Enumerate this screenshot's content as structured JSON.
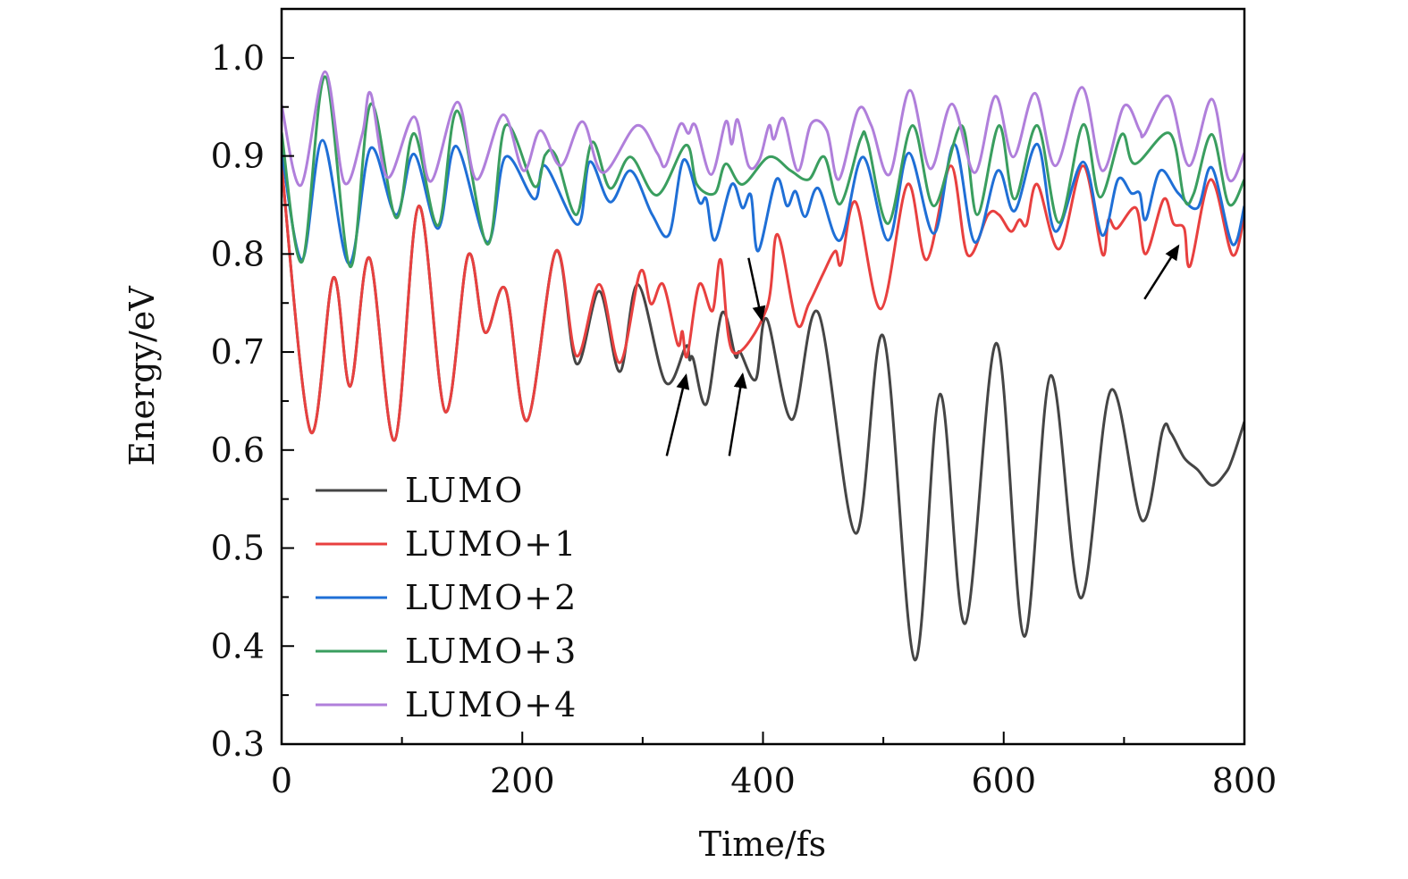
{
  "chart_data": {
    "type": "line",
    "title": "",
    "xlabel": "Time/fs",
    "ylabel": "Energy/eV",
    "xlim": [
      0,
      800
    ],
    "ylim": [
      0.3,
      1.05
    ],
    "xticks": [
      "0",
      "200",
      "400",
      "600",
      "800"
    ],
    "xtick_values": [
      0,
      200,
      400,
      600,
      800
    ],
    "yticks": [
      "0.3",
      "0.4",
      "0.5",
      "0.6",
      "0.7",
      "0.8",
      "0.9",
      "1.0"
    ],
    "ytick_values": [
      0.3,
      0.4,
      0.5,
      0.6,
      0.7,
      0.8,
      0.9,
      1.0
    ],
    "grid": false,
    "legend_position": "bottom-left",
    "series": [
      {
        "name": "LUMO",
        "color": "#454545",
        "points": [
          [
            0,
            0.89
          ],
          [
            24,
            0.619
          ],
          [
            43,
            0.776
          ],
          [
            57,
            0.665
          ],
          [
            73,
            0.796
          ],
          [
            94,
            0.61
          ],
          [
            114,
            0.849
          ],
          [
            136,
            0.639
          ],
          [
            155,
            0.799
          ],
          [
            169,
            0.72
          ],
          [
            186,
            0.764
          ],
          [
            204,
            0.63
          ],
          [
            228,
            0.803
          ],
          [
            245,
            0.688
          ],
          [
            264,
            0.762
          ],
          [
            281,
            0.68
          ],
          [
            296,
            0.769
          ],
          [
            319,
            0.669
          ],
          [
            336,
            0.706
          ],
          [
            339,
            0.692
          ],
          [
            342,
            0.693
          ],
          [
            353,
            0.647
          ],
          [
            366,
            0.74
          ],
          [
            377,
            0.696
          ],
          [
            381,
            0.7
          ],
          [
            394,
            0.672
          ],
          [
            403,
            0.734
          ],
          [
            424,
            0.631
          ],
          [
            446,
            0.74
          ],
          [
            477,
            0.515
          ],
          [
            500,
            0.716
          ],
          [
            526,
            0.386
          ],
          [
            547,
            0.657
          ],
          [
            568,
            0.423
          ],
          [
            594,
            0.709
          ],
          [
            617,
            0.41
          ],
          [
            639,
            0.676
          ],
          [
            664,
            0.449
          ],
          [
            689,
            0.661
          ],
          [
            715,
            0.528
          ],
          [
            732,
            0.62
          ],
          [
            739,
            0.617
          ],
          [
            750,
            0.592
          ],
          [
            761,
            0.58
          ],
          [
            773,
            0.564
          ],
          [
            784,
            0.576
          ],
          [
            790,
            0.591
          ],
          [
            800,
            0.629
          ]
        ]
      },
      {
        "name": "LUMO+1",
        "color": "#e8403f",
        "points": [
          [
            0,
            0.89
          ],
          [
            24,
            0.619
          ],
          [
            43,
            0.776
          ],
          [
            57,
            0.665
          ],
          [
            73,
            0.796
          ],
          [
            94,
            0.61
          ],
          [
            114,
            0.849
          ],
          [
            136,
            0.639
          ],
          [
            155,
            0.799
          ],
          [
            169,
            0.72
          ],
          [
            186,
            0.764
          ],
          [
            204,
            0.63
          ],
          [
            228,
            0.803
          ],
          [
            245,
            0.696
          ],
          [
            264,
            0.769
          ],
          [
            281,
            0.689
          ],
          [
            298,
            0.782
          ],
          [
            307,
            0.749
          ],
          [
            317,
            0.769
          ],
          [
            329,
            0.708
          ],
          [
            333,
            0.721
          ],
          [
            337,
            0.696
          ],
          [
            347,
            0.769
          ],
          [
            358,
            0.742
          ],
          [
            365,
            0.794
          ],
          [
            375,
            0.7
          ],
          [
            403,
            0.744
          ],
          [
            412,
            0.82
          ],
          [
            428,
            0.729
          ],
          [
            438,
            0.749
          ],
          [
            450,
            0.78
          ],
          [
            460,
            0.803
          ],
          [
            465,
            0.79
          ],
          [
            477,
            0.853
          ],
          [
            498,
            0.744
          ],
          [
            520,
            0.871
          ],
          [
            536,
            0.794
          ],
          [
            556,
            0.89
          ],
          [
            570,
            0.799
          ],
          [
            587,
            0.84
          ],
          [
            596,
            0.84
          ],
          [
            606,
            0.823
          ],
          [
            613,
            0.835
          ],
          [
            619,
            0.83
          ],
          [
            628,
            0.871
          ],
          [
            646,
            0.805
          ],
          [
            666,
            0.89
          ],
          [
            682,
            0.8
          ],
          [
            687,
            0.835
          ],
          [
            694,
            0.826
          ],
          [
            710,
            0.847
          ],
          [
            718,
            0.8
          ],
          [
            733,
            0.856
          ],
          [
            741,
            0.831
          ],
          [
            750,
            0.826
          ],
          [
            755,
            0.788
          ],
          [
            772,
            0.876
          ],
          [
            790,
            0.799
          ],
          [
            800,
            0.84
          ]
        ]
      },
      {
        "name": "LUMO+2",
        "color": "#1f6fd6",
        "points": [
          [
            0,
            0.905
          ],
          [
            17,
            0.794
          ],
          [
            34,
            0.916
          ],
          [
            56,
            0.79
          ],
          [
            74,
            0.908
          ],
          [
            95,
            0.84
          ],
          [
            110,
            0.902
          ],
          [
            130,
            0.826
          ],
          [
            145,
            0.91
          ],
          [
            171,
            0.812
          ],
          [
            186,
            0.899
          ],
          [
            210,
            0.856
          ],
          [
            219,
            0.89
          ],
          [
            246,
            0.83
          ],
          [
            256,
            0.894
          ],
          [
            273,
            0.853
          ],
          [
            290,
            0.885
          ],
          [
            308,
            0.84
          ],
          [
            322,
            0.82
          ],
          [
            334,
            0.896
          ],
          [
            347,
            0.853
          ],
          [
            353,
            0.856
          ],
          [
            360,
            0.814
          ],
          [
            374,
            0.871
          ],
          [
            383,
            0.847
          ],
          [
            390,
            0.86
          ],
          [
            396,
            0.803
          ],
          [
            411,
            0.876
          ],
          [
            420,
            0.849
          ],
          [
            427,
            0.864
          ],
          [
            435,
            0.838
          ],
          [
            446,
            0.867
          ],
          [
            464,
            0.814
          ],
          [
            483,
            0.899
          ],
          [
            504,
            0.814
          ],
          [
            521,
            0.903
          ],
          [
            542,
            0.821
          ],
          [
            559,
            0.912
          ],
          [
            576,
            0.812
          ],
          [
            595,
            0.885
          ],
          [
            609,
            0.844
          ],
          [
            628,
            0.912
          ],
          [
            643,
            0.823
          ],
          [
            666,
            0.894
          ],
          [
            682,
            0.819
          ],
          [
            695,
            0.876
          ],
          [
            706,
            0.862
          ],
          [
            713,
            0.862
          ],
          [
            718,
            0.835
          ],
          [
            730,
            0.885
          ],
          [
            745,
            0.862
          ],
          [
            761,
            0.847
          ],
          [
            773,
            0.888
          ],
          [
            790,
            0.81
          ],
          [
            800,
            0.849
          ]
        ]
      },
      {
        "name": "LUMO+3",
        "color": "#3a9e5f",
        "points": [
          [
            0,
            0.924
          ],
          [
            17,
            0.792
          ],
          [
            36,
            0.981
          ],
          [
            57,
            0.787
          ],
          [
            74,
            0.953
          ],
          [
            95,
            0.837
          ],
          [
            110,
            0.923
          ],
          [
            130,
            0.829
          ],
          [
            146,
            0.946
          ],
          [
            171,
            0.81
          ],
          [
            186,
            0.931
          ],
          [
            210,
            0.869
          ],
          [
            219,
            0.901
          ],
          [
            228,
            0.9
          ],
          [
            245,
            0.84
          ],
          [
            258,
            0.914
          ],
          [
            273,
            0.867
          ],
          [
            290,
            0.899
          ],
          [
            312,
            0.86
          ],
          [
            336,
            0.911
          ],
          [
            345,
            0.871
          ],
          [
            360,
            0.862
          ],
          [
            369,
            0.892
          ],
          [
            383,
            0.871
          ],
          [
            405,
            0.899
          ],
          [
            423,
            0.885
          ],
          [
            438,
            0.876
          ],
          [
            451,
            0.899
          ],
          [
            464,
            0.851
          ],
          [
            481,
            0.917
          ],
          [
            487,
            0.914
          ],
          [
            504,
            0.831
          ],
          [
            524,
            0.931
          ],
          [
            542,
            0.849
          ],
          [
            565,
            0.931
          ],
          [
            578,
            0.84
          ],
          [
            596,
            0.931
          ],
          [
            609,
            0.856
          ],
          [
            628,
            0.931
          ],
          [
            646,
            0.832
          ],
          [
            666,
            0.932
          ],
          [
            680,
            0.858
          ],
          [
            698,
            0.922
          ],
          [
            709,
            0.892
          ],
          [
            738,
            0.923
          ],
          [
            750,
            0.856
          ],
          [
            758,
            0.862
          ],
          [
            773,
            0.922
          ],
          [
            787,
            0.851
          ],
          [
            800,
            0.876
          ]
        ]
      },
      {
        "name": "LUMO+4",
        "color": "#b07fdb",
        "points": [
          [
            0,
            0.952
          ],
          [
            16,
            0.87
          ],
          [
            36,
            0.986
          ],
          [
            52,
            0.873
          ],
          [
            67,
            0.922
          ],
          [
            74,
            0.964
          ],
          [
            88,
            0.878
          ],
          [
            110,
            0.94
          ],
          [
            124,
            0.874
          ],
          [
            146,
            0.955
          ],
          [
            162,
            0.876
          ],
          [
            184,
            0.942
          ],
          [
            201,
            0.885
          ],
          [
            215,
            0.926
          ],
          [
            232,
            0.89
          ],
          [
            250,
            0.935
          ],
          [
            267,
            0.883
          ],
          [
            295,
            0.931
          ],
          [
            312,
            0.903
          ],
          [
            319,
            0.89
          ],
          [
            331,
            0.932
          ],
          [
            338,
            0.923
          ],
          [
            344,
            0.931
          ],
          [
            357,
            0.881
          ],
          [
            369,
            0.935
          ],
          [
            374,
            0.912
          ],
          [
            379,
            0.937
          ],
          [
            388,
            0.89
          ],
          [
            397,
            0.896
          ],
          [
            405,
            0.931
          ],
          [
            409,
            0.917
          ],
          [
            417,
            0.938
          ],
          [
            429,
            0.885
          ],
          [
            440,
            0.933
          ],
          [
            453,
            0.926
          ],
          [
            463,
            0.876
          ],
          [
            479,
            0.947
          ],
          [
            490,
            0.931
          ],
          [
            505,
            0.881
          ],
          [
            522,
            0.967
          ],
          [
            539,
            0.887
          ],
          [
            557,
            0.953
          ],
          [
            576,
            0.883
          ],
          [
            593,
            0.961
          ],
          [
            608,
            0.899
          ],
          [
            626,
            0.964
          ],
          [
            643,
            0.89
          ],
          [
            665,
            0.97
          ],
          [
            682,
            0.885
          ],
          [
            700,
            0.951
          ],
          [
            713,
            0.926
          ],
          [
            717,
            0.922
          ],
          [
            737,
            0.961
          ],
          [
            754,
            0.89
          ],
          [
            773,
            0.958
          ],
          [
            787,
            0.876
          ],
          [
            800,
            0.903
          ]
        ]
      }
    ],
    "annotations": [
      {
        "type": "arrow",
        "from": [
          320,
          0.594
        ],
        "to": [
          336,
          0.676
        ]
      },
      {
        "type": "arrow",
        "from": [
          372,
          0.594
        ],
        "to": [
          383,
          0.677
        ]
      },
      {
        "type": "arrow",
        "from": [
          388,
          0.796
        ],
        "to": [
          399,
          0.733
        ]
      },
      {
        "type": "arrow",
        "from": [
          717,
          0.754
        ],
        "to": [
          745,
          0.808
        ]
      }
    ]
  }
}
